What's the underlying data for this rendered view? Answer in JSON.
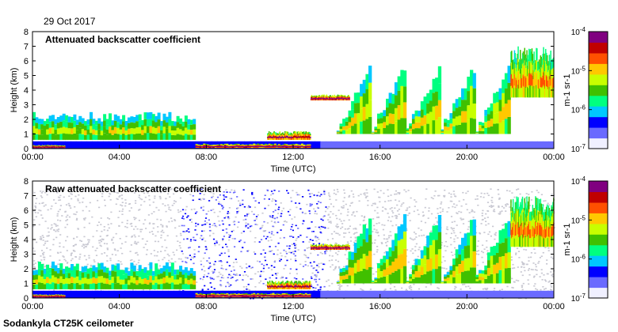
{
  "date": "29 Oct 2017",
  "footer": "Sodankyla CT25K ceilometer",
  "colors": {
    "background": "#ffffff",
    "noise": "#c8c8d2",
    "scale": [
      "#f0f0ff",
      "#6a6aff",
      "#0000ff",
      "#00c8ff",
      "#00ff80",
      "#40c000",
      "#c8ff00",
      "#ffc800",
      "#ff5000",
      "#c00000",
      "#800080"
    ]
  },
  "chart_data": [
    {
      "type": "heatmap",
      "title": "Attenuated backscatter coefficient",
      "xlabel": "Time (UTC)",
      "ylabel": "Height (km)",
      "xlim": [
        0,
        24
      ],
      "ylim": [
        0,
        8
      ],
      "xticks": [
        "00:00",
        "04:00",
        "08:00",
        "12:00",
        "16:00",
        "20:00",
        "00:00"
      ],
      "yticks": [
        "0",
        "1",
        "2",
        "3",
        "4",
        "5",
        "6",
        "7",
        "8"
      ],
      "colorbar": {
        "min": "10^-7",
        "max": "10^-4",
        "labels": [
          "10-4",
          "10-5",
          "10-6",
          "10-7"
        ],
        "unit": "m-1 sr-1"
      },
      "noise": false,
      "features": [
        {
          "t": [
            0,
            7.5
          ],
          "h": [
            0.6,
            2.5
          ],
          "kind": "boundary-layer aerosol",
          "level": 0.55
        },
        {
          "t": [
            0,
            1.5
          ],
          "h": [
            0.05,
            0.25
          ],
          "kind": "fog/low cloud",
          "level": 1.0
        },
        {
          "t": [
            7.5,
            12.8
          ],
          "h": [
            0.05,
            0.35
          ],
          "kind": "low cloud",
          "level": 0.95
        },
        {
          "t": [
            10.8,
            12.8
          ],
          "h": [
            0.6,
            1.2
          ],
          "kind": "cloud layer",
          "level": 0.85
        },
        {
          "t": [
            12.8,
            14.6
          ],
          "h": [
            3.3,
            3.7
          ],
          "kind": "cloud",
          "level": 0.95
        },
        {
          "t": [
            14.0,
            22.0
          ],
          "h": [
            1.0,
            5.5
          ],
          "kind": "precipitation streaks",
          "level": 0.6
        },
        {
          "t": [
            22.0,
            24.0
          ],
          "h": [
            3.5,
            7.0
          ],
          "kind": "cloud",
          "level": 0.7
        }
      ]
    },
    {
      "type": "heatmap",
      "title": "Raw attenuated backscatter coefficient",
      "xlabel": "Time (UTC)",
      "ylabel": "Height (km)",
      "xlim": [
        0,
        24
      ],
      "ylim": [
        0,
        8
      ],
      "xticks": [
        "00:00",
        "04:00",
        "08:00",
        "12:00",
        "16:00",
        "20:00",
        "00:00"
      ],
      "yticks": [
        "0",
        "1",
        "2",
        "3",
        "4",
        "5",
        "6",
        "7",
        "8"
      ],
      "colorbar": {
        "min": "10^-7",
        "max": "10^-4",
        "labels": [
          "10-4",
          "10-5",
          "10-6",
          "10-7"
        ],
        "unit": "m-1 sr-1"
      },
      "noise": true,
      "features": [
        {
          "t": [
            0,
            7.5
          ],
          "h": [
            0.6,
            2.5
          ],
          "kind": "boundary-layer aerosol",
          "level": 0.55
        },
        {
          "t": [
            0,
            1.5
          ],
          "h": [
            0.05,
            0.25
          ],
          "kind": "fog/low cloud",
          "level": 1.0
        },
        {
          "t": [
            7.5,
            12.8
          ],
          "h": [
            0.05,
            0.35
          ],
          "kind": "low cloud",
          "level": 0.95
        },
        {
          "t": [
            10.8,
            12.8
          ],
          "h": [
            0.6,
            1.2
          ],
          "kind": "cloud layer",
          "level": 0.85
        },
        {
          "t": [
            12.8,
            14.6
          ],
          "h": [
            3.3,
            3.7
          ],
          "kind": "cloud",
          "level": 0.95
        },
        {
          "t": [
            14.0,
            22.0
          ],
          "h": [
            1.0,
            5.5
          ],
          "kind": "precipitation streaks",
          "level": 0.6
        },
        {
          "t": [
            22.0,
            24.0
          ],
          "h": [
            3.5,
            7.0
          ],
          "kind": "cloud",
          "level": 0.7
        }
      ]
    }
  ]
}
